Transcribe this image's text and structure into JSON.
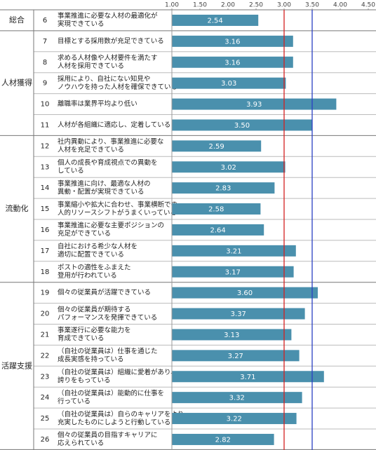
{
  "chart_data": {
    "type": "bar",
    "orientation": "horizontal",
    "color": "#4a90ad",
    "xlim": [
      1,
      4.5
    ],
    "xticks": [
      {
        "value": 1,
        "label": "1.00"
      },
      {
        "value": 1.5,
        "label": "1.50"
      },
      {
        "value": 2,
        "label": "2.00"
      },
      {
        "value": 2.5,
        "label": "2.50"
      },
      {
        "value": 3,
        "label": "3.00"
      },
      {
        "value": 3.5,
        "label": "3.50"
      },
      {
        "value": 4,
        "label": "4.00"
      },
      {
        "value": 4.5,
        "label": "4.50"
      }
    ],
    "reference_lines": [
      {
        "value": 3,
        "color": "#d42020"
      },
      {
        "value": 3.5,
        "color": "#2a3fc4"
      }
    ],
    "groups": [
      {
        "name": "総合",
        "numbers": [
          6
        ],
        "categories": [
          [
            "事業推進に必要な人材の最適化が",
            "実現できている"
          ]
        ],
        "values": [
          2.54
        ],
        "value_labels": [
          "2.54"
        ]
      },
      {
        "name": "人材獲得",
        "numbers": [
          7,
          8,
          9,
          10,
          11
        ],
        "categories": [
          [
            "目標とする採用数が充足できている"
          ],
          [
            "求める人材像や人材要件を満たす",
            "人材を採用できている"
          ],
          [
            "採用により、自社にない知見や",
            "ノウハウを持った人材を確保できている"
          ],
          [
            "離職率は業界平均より低い"
          ],
          [
            "人材が各組織に適応し、定着している"
          ]
        ],
        "values": [
          3.16,
          3.16,
          3.03,
          3.93,
          3.5
        ],
        "value_labels": [
          "3.16",
          "3.16",
          "3.03",
          "3.93",
          "3.50"
        ]
      },
      {
        "name": "流動化",
        "numbers": [
          12,
          13,
          14,
          15,
          16,
          17,
          18
        ],
        "categories": [
          [
            "社内異動により、事業推進に必要な",
            "人材を充足できている"
          ],
          [
            "個人の成長や育成視点での異動を",
            "している"
          ],
          [
            "事業推進に向け、最適な人材の",
            "異動・配置が実現できている"
          ],
          [
            "事業縮小や拡大に合わせ、事業横断での",
            "人的リソースシフトがうまくいっている"
          ],
          [
            "事業推進に必要な主要ポジションの",
            "充足ができている"
          ],
          [
            "自社における希少な人材を",
            "適切に配置できている"
          ],
          [
            "ポストの適性をふまえた",
            "登用が行われている"
          ]
        ],
        "values": [
          2.59,
          3.02,
          2.83,
          2.58,
          2.64,
          3.21,
          3.17
        ],
        "value_labels": [
          "2.59",
          "3.02",
          "2.83",
          "2.58",
          "2.64",
          "3.21",
          "3.17"
        ]
      },
      {
        "name": "活躍支援",
        "numbers": [
          19,
          20,
          21,
          22,
          23,
          24,
          25,
          26
        ],
        "categories": [
          [
            "個々の従業員が活躍できている"
          ],
          [
            "個々の従業員が期待する",
            "パフォーマンスを発揮できている"
          ],
          [
            "事業遂行に必要な能力を",
            "育成できている"
          ],
          [
            "（自社の従業員は）仕事を通じた",
            "成長実感を持っている"
          ],
          [
            "（自社の従業員は）組織に愛着があり、",
            "誇りをもっている"
          ],
          [
            "（自社の従業員は）能動的に仕事を",
            "行っている"
          ],
          [
            "（自社の従業員は）自らのキャリアをより",
            "充実したものにしようと行動している"
          ],
          [
            "個々の従業員の目指すキャリアに",
            "応えられている"
          ]
        ],
        "values": [
          3.6,
          3.37,
          3.13,
          3.27,
          3.71,
          3.32,
          3.22,
          2.82
        ],
        "value_labels": [
          "3.60",
          "3.37",
          "3.13",
          "3.27",
          "3.71",
          "3.32",
          "3.22",
          "2.82"
        ]
      }
    ]
  }
}
